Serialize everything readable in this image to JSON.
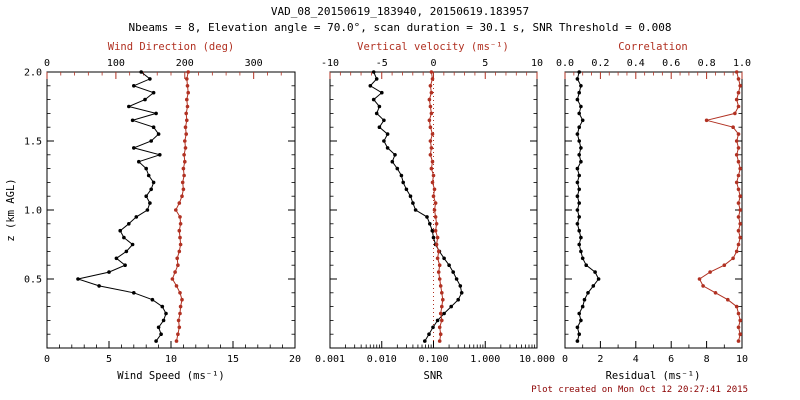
{
  "header": {
    "title": "VAD_08_20150619_183940, 20150619.183957",
    "subtitle": "Nbeams = 8, Elevation angle = 70.0°, scan duration = 30.1 s, SNR Threshold = 0.008"
  },
  "footer": {
    "created": "Plot created on Mon Oct 12 20:27:41 2015"
  },
  "colors": {
    "black": "#000000",
    "red": "#b13122",
    "footer": "#8b0000"
  },
  "chart_data": {
    "type": "line",
    "title": "VAD_08_20150619_183940, 20150619.183957",
    "subtitle": "Nbeams = 8, Elevation angle = 70.0°, scan duration = 30.1 s, SNR Threshold = 0.008",
    "ylabel": "z (km AGL)",
    "ylim": [
      0,
      2
    ],
    "yaxis": {
      "values": [
        0,
        0.5,
        1,
        1.5,
        2
      ],
      "labels": [
        "",
        "0.5",
        "1.0",
        "1.5",
        "2.0"
      ],
      "minor_step": 0.1
    },
    "z": [
      0.05,
      0.1,
      0.15,
      0.2,
      0.25,
      0.3,
      0.35,
      0.4,
      0.45,
      0.5,
      0.55,
      0.6,
      0.65,
      0.7,
      0.75,
      0.8,
      0.85,
      0.9,
      0.95,
      1,
      1.05,
      1.1,
      1.15,
      1.2,
      1.25,
      1.3,
      1.35,
      1.4,
      1.45,
      1.5,
      1.55,
      1.6,
      1.65,
      1.7,
      1.75,
      1.8,
      1.85,
      1.9,
      1.95,
      2
    ],
    "panels": [
      {
        "name": "wind",
        "top_axis": {
          "label": "Wind Direction (deg)",
          "lim": [
            0,
            360
          ],
          "ticks": [
            0,
            100,
            200,
            300
          ],
          "tick_labels": [
            "0",
            "100",
            "200",
            "300"
          ],
          "scale": "linear",
          "color": "red",
          "minor_step": 20
        },
        "bottom_axis": {
          "label": "Wind Speed (ms⁻¹)",
          "lim": [
            0,
            20
          ],
          "ticks": [
            0,
            5,
            10,
            15,
            20
          ],
          "tick_labels": [
            "0",
            "5",
            "10",
            "15",
            "20"
          ],
          "scale": "linear",
          "color": "black",
          "minor_step": 1
        },
        "series": [
          {
            "name": "wind-speed",
            "axis": "bottom",
            "color": "black",
            "values": [
              8.8,
              9.2,
              9.0,
              9.4,
              9.6,
              9.3,
              8.5,
              7.0,
              4.2,
              2.5,
              5.0,
              6.3,
              5.6,
              6.4,
              6.9,
              6.2,
              5.9,
              6.6,
              7.2,
              8.1,
              8.3,
              8.0,
              8.4,
              8.6,
              8.2,
              8.0,
              7.4,
              9.1,
              7.0,
              8.4,
              9.0,
              8.6,
              6.9,
              8.8,
              6.6,
              7.9,
              8.6,
              7.0,
              8.3,
              7.6
            ]
          },
          {
            "name": "wind-direction",
            "axis": "top",
            "color": "red",
            "values": [
              188,
              190,
              192,
              191,
              193,
              194,
              196,
              193,
              188,
              182,
              186,
              190,
              189,
              192,
              194,
              193,
              192,
              194,
              193,
              187,
              192,
              196,
              198,
              197,
              199,
              198,
              200,
              199,
              201,
              200,
              202,
              201,
              203,
              202,
              204,
              203,
              205,
              204,
              203,
              205
            ]
          }
        ]
      },
      {
        "name": "snr",
        "top_axis": {
          "label": "Vertical velocity (ms⁻¹)",
          "lim": [
            -10,
            10
          ],
          "ticks": [
            -10,
            -5,
            0,
            5,
            10
          ],
          "tick_labels": [
            "-10",
            "-5",
            "0",
            "5",
            "10"
          ],
          "scale": "linear",
          "color": "red",
          "minor_step": 1,
          "refline": 0
        },
        "bottom_axis": {
          "label": "SNR",
          "lim": [
            0.001,
            10
          ],
          "ticks": [
            0.001,
            0.01,
            0.1,
            1,
            10
          ],
          "tick_labels": [
            "0.001",
            "0.010",
            "0.100",
            "1.000",
            "10.000"
          ],
          "scale": "log",
          "color": "black"
        },
        "series": [
          {
            "name": "snr",
            "axis": "bottom",
            "color": "black",
            "values": [
              0.068,
              0.082,
              0.098,
              0.12,
              0.16,
              0.22,
              0.3,
              0.35,
              0.33,
              0.28,
              0.24,
              0.2,
              0.16,
              0.13,
              0.11,
              0.1,
              0.095,
              0.085,
              0.075,
              0.045,
              0.04,
              0.036,
              0.03,
              0.026,
              0.024,
              0.02,
              0.016,
              0.018,
              0.013,
              0.011,
              0.013,
              0.009,
              0.011,
              0.008,
              0.009,
              0.007,
              0.01,
              0.006,
              0.008,
              0.007
            ]
          },
          {
            "name": "vertical-velocity",
            "axis": "top",
            "color": "red",
            "values": [
              0.6,
              0.7,
              0.6,
              0.8,
              0.7,
              0.8,
              0.9,
              0.8,
              0.7,
              0.6,
              0.5,
              0.6,
              0.4,
              0.5,
              0.3,
              0.4,
              0.2,
              0.3,
              0.2,
              0.1,
              0.2,
              0.0,
              0.1,
              -0.1,
              0.0,
              -0.2,
              -0.1,
              -0.3,
              -0.2,
              -0.3,
              -0.1,
              -0.3,
              -0.4,
              -0.2,
              -0.3,
              -0.4,
              -0.2,
              -0.3,
              -0.1,
              -0.2
            ]
          }
        ]
      },
      {
        "name": "residual",
        "top_axis": {
          "label": "Correlation",
          "lim": [
            0,
            1
          ],
          "ticks": [
            0,
            0.2,
            0.4,
            0.6,
            0.8,
            1
          ],
          "tick_labels": [
            "0.0",
            "0.2",
            "0.4",
            "0.6",
            "0.8",
            "1.0"
          ],
          "scale": "linear",
          "color": "red",
          "minor_step": 0.05
        },
        "bottom_axis": {
          "label": "Residual (ms⁻¹)",
          "lim": [
            0,
            10
          ],
          "ticks": [
            0,
            2,
            4,
            6,
            8,
            10
          ],
          "tick_labels": [
            "0",
            "2",
            "4",
            "6",
            "8",
            "10"
          ],
          "scale": "linear",
          "color": "black",
          "minor_step": 1
        },
        "series": [
          {
            "name": "residual",
            "axis": "bottom",
            "color": "black",
            "values": [
              0.7,
              0.8,
              0.7,
              0.9,
              0.8,
              1.0,
              1.1,
              1.3,
              1.6,
              1.9,
              1.7,
              1.2,
              1.0,
              0.9,
              0.8,
              0.9,
              0.8,
              0.7,
              0.8,
              0.7,
              0.8,
              0.7,
              0.8,
              0.7,
              0.8,
              0.7,
              0.9,
              0.8,
              0.9,
              0.8,
              0.7,
              0.8,
              1.0,
              0.8,
              0.9,
              0.7,
              0.8,
              0.9,
              0.7,
              0.8
            ]
          },
          {
            "name": "correlation",
            "axis": "top",
            "color": "red",
            "values": [
              0.98,
              0.99,
              0.98,
              0.99,
              0.98,
              0.97,
              0.92,
              0.85,
              0.78,
              0.76,
              0.82,
              0.9,
              0.95,
              0.97,
              0.98,
              0.99,
              0.98,
              0.99,
              0.98,
              0.99,
              0.98,
              0.99,
              0.98,
              0.97,
              0.98,
              0.99,
              0.98,
              0.97,
              0.98,
              0.97,
              0.98,
              0.95,
              0.8,
              0.96,
              0.98,
              0.97,
              0.98,
              0.99,
              0.98,
              0.97
            ]
          }
        ]
      }
    ]
  }
}
